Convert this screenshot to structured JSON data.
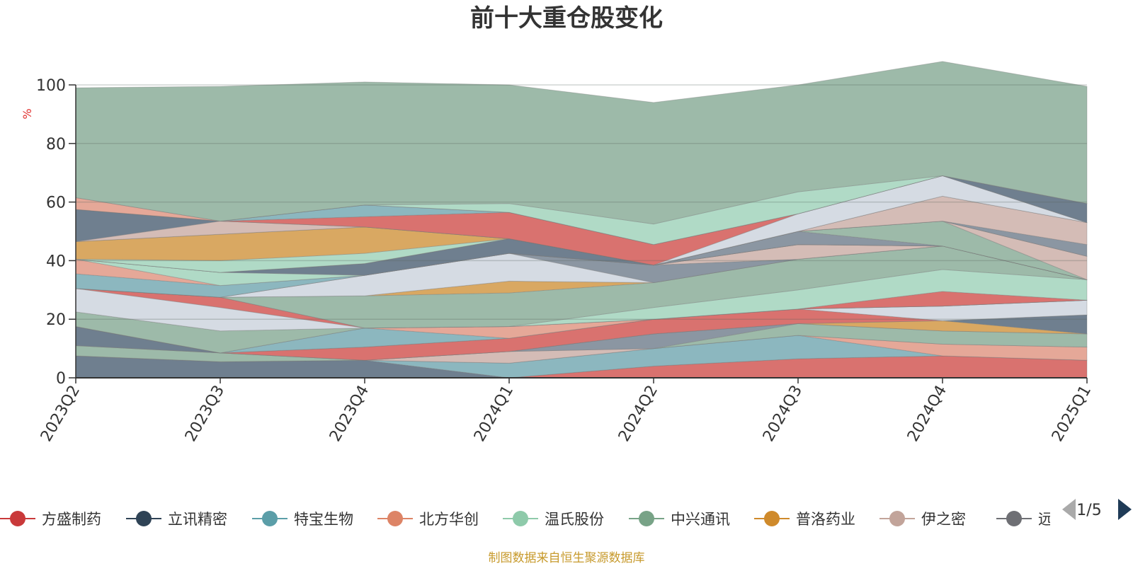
{
  "colors": {
    "background": "#ffffff",
    "axis": "#333333",
    "grid": "#c8c8c8",
    "unit": "#e0302e",
    "source": "#c79a2c",
    "pager_active": "#1f3b57",
    "pager_inactive": "#aaaaaa"
  },
  "chart_data": {
    "type": "area",
    "stacked": true,
    "title": "前十大重仓股变化",
    "ylabel": "%",
    "xlabel": "",
    "ylim": [
      0,
      100
    ],
    "yticks": [
      0,
      20,
      40,
      60,
      80,
      100
    ],
    "grid": true,
    "legend_position": "bottom",
    "categories": [
      "2023Q2",
      "2023Q3",
      "2023Q4",
      "2024Q1",
      "2024Q2",
      "2024Q3",
      "2024Q4",
      "2025Q1"
    ],
    "series": [
      {
        "name": "方盛制药",
        "color": "#d9726f",
        "values": [
          0,
          0,
          0,
          0,
          4,
          6.5,
          7.5,
          6
        ]
      },
      {
        "name": "",
        "color": "#6f7f8f",
        "values": [
          7.5,
          5.5,
          6,
          0,
          0,
          0,
          0,
          0
        ]
      },
      {
        "name": "特宝生物",
        "color": "#8cb7bf",
        "values": [
          0,
          0,
          0,
          5,
          6,
          8,
          0,
          0
        ]
      },
      {
        "name": "北方华创",
        "color": "#e5a898",
        "values": [
          0,
          0,
          0,
          0,
          0,
          0,
          4,
          4.5
        ]
      },
      {
        "name": "伊之密",
        "color": "#d4bcb6",
        "values": [
          0,
          0,
          0,
          4,
          0,
          0,
          0,
          0
        ]
      },
      {
        "name": "中兴通讯",
        "color": "#9dbaa9",
        "values": [
          3.5,
          3,
          0,
          0,
          0,
          4,
          4.5,
          4.5
        ]
      },
      {
        "name": "",
        "color": "#8b96a2",
        "values": [
          0,
          0,
          0,
          0,
          5,
          0,
          0,
          0
        ]
      },
      {
        "name": "普洛药业",
        "color": "#d9a862",
        "values": [
          0,
          0,
          0,
          0,
          0,
          0,
          3.5,
          0
        ]
      },
      {
        "name": "立讯精密",
        "color": "#6f7f8f",
        "values": [
          6.5,
          0,
          0,
          0,
          0,
          0,
          0,
          6.5
        ]
      },
      {
        "name": "方盛制药",
        "color": "#d9726f",
        "values": [
          0,
          0,
          4.5,
          4.5,
          5,
          5,
          0,
          0
        ]
      },
      {
        "name": "",
        "color": "#d5dbe3",
        "values": [
          0,
          0,
          0,
          0,
          0,
          0,
          5,
          5
        ]
      },
      {
        "name": "特宝生物",
        "color": "#8cb7bf",
        "values": [
          0,
          0,
          6.5,
          0,
          0,
          0,
          0,
          0
        ]
      },
      {
        "name": "北方华创",
        "color": "#e5a898",
        "values": [
          0,
          0,
          0,
          4,
          0,
          0,
          0,
          0
        ]
      },
      {
        "name": "中兴通讯",
        "color": "#9dbaa9",
        "values": [
          5,
          7.5,
          0,
          0,
          0,
          0,
          0,
          0
        ]
      },
      {
        "name": "",
        "color": "#d5dbe3",
        "values": [
          8,
          8,
          0,
          0,
          0,
          0,
          0,
          0
        ]
      },
      {
        "name": "方盛制药",
        "color": "#d9726f",
        "values": [
          0,
          3.5,
          0,
          0,
          0,
          0,
          5,
          0
        ]
      },
      {
        "name": "温氏股份",
        "color": "#b0dac6",
        "values": [
          0,
          0,
          0,
          0,
          4,
          6.5,
          7.5,
          7
        ]
      },
      {
        "name": "中兴通讯",
        "color": "#9dbaa9",
        "values": [
          0,
          0,
          11,
          11.5,
          8.5,
          10.5,
          8,
          0
        ]
      },
      {
        "name": "普洛药业",
        "color": "#d9a862",
        "values": [
          0,
          0,
          0,
          4,
          0,
          0,
          0,
          0
        ]
      },
      {
        "name": "",
        "color": "#d5dbe3",
        "values": [
          0,
          0,
          7,
          9.5,
          0,
          0,
          0,
          0
        ]
      },
      {
        "name": "",
        "color": "#8b96a2",
        "values": [
          0,
          0,
          0,
          0,
          6,
          0,
          0,
          0
        ]
      },
      {
        "name": "伊之密",
        "color": "#d4bcb6",
        "values": [
          0,
          0,
          0,
          0,
          0,
          5,
          0,
          0
        ]
      },
      {
        "name": "特宝生物",
        "color": "#8cb7bf",
        "values": [
          5,
          4,
          0,
          0,
          0,
          0,
          0,
          0
        ]
      },
      {
        "name": "北方华创",
        "color": "#e5a898",
        "values": [
          5,
          0,
          0,
          0,
          0,
          0,
          0,
          0
        ]
      },
      {
        "name": "温氏股份",
        "color": "#b0dac6",
        "values": [
          0,
          4.5,
          0,
          0,
          0,
          0,
          0,
          0
        ]
      },
      {
        "name": "立讯精密",
        "color": "#6f7f8f",
        "values": [
          0,
          0,
          4,
          5,
          0,
          0,
          0,
          0
        ]
      },
      {
        "name": "",
        "color": "#8b96a2",
        "values": [
          0,
          0,
          0,
          0,
          0,
          4.5,
          0,
          0
        ]
      },
      {
        "name": "中兴通讯",
        "color": "#9dbaa9",
        "values": [
          0,
          0,
          0,
          0,
          0,
          0,
          8.5,
          0
        ]
      },
      {
        "name": "伊之密",
        "color": "#d4bcb6",
        "values": [
          0,
          0,
          0,
          0,
          0,
          0,
          0,
          8
        ]
      },
      {
        "name": "温氏股份",
        "color": "#b0dac6",
        "values": [
          0,
          4,
          3.5,
          0,
          0,
          0,
          0,
          0
        ]
      },
      {
        "name": "普洛药业",
        "color": "#d9a862",
        "values": [
          6,
          9,
          9,
          0,
          0,
          0,
          0,
          0
        ]
      },
      {
        "name": "",
        "color": "#8b96a2",
        "values": [
          0,
          0,
          0,
          0,
          0,
          0,
          0,
          4
        ]
      },
      {
        "name": "伊之密",
        "color": "#d4bcb6",
        "values": [
          0,
          4.5,
          0,
          0,
          0,
          0,
          8.5,
          7.5
        ]
      },
      {
        "name": "立讯精密",
        "color": "#6f7f8f",
        "values": [
          11,
          0,
          0,
          0,
          0,
          0,
          0,
          0
        ]
      },
      {
        "name": "",
        "color": "#d5dbe3",
        "values": [
          0,
          0,
          0,
          0,
          0,
          6,
          7,
          0
        ]
      },
      {
        "name": "方盛制药",
        "color": "#d9726f",
        "values": [
          0,
          0,
          3.5,
          9,
          7,
          0,
          0,
          0
        ]
      },
      {
        "name": "特宝生物",
        "color": "#8cb7bf",
        "values": [
          0,
          0,
          4,
          0,
          0,
          0,
          0,
          0
        ]
      },
      {
        "name": "立讯精密",
        "color": "#6f7f8f",
        "values": [
          0,
          0,
          0,
          0,
          0,
          0,
          0,
          6.5
        ]
      },
      {
        "name": "北方华创",
        "color": "#e5a898",
        "values": [
          4,
          0,
          0,
          0,
          0,
          0,
          0,
          0
        ]
      },
      {
        "name": "温氏股份",
        "color": "#b0dac6",
        "values": [
          0,
          0,
          0,
          3,
          7,
          7.5,
          0,
          0
        ]
      },
      {
        "name": "",
        "color": "#9dbaa9",
        "values": [
          37.5,
          46,
          42,
          40.5,
          41.5,
          36.5,
          39,
          40
        ]
      }
    ],
    "legend": [
      "方盛制药",
      "立讯精密",
      "特宝生物",
      "北方华创",
      "温氏股份",
      "中兴通讯",
      "普洛药业",
      "伊之密",
      "远东股份"
    ],
    "legend_colors": [
      "#c9393a",
      "#2f4356",
      "#5b9ea8",
      "#dd8466",
      "#8ecaaa",
      "#78a387",
      "#cf8a2b",
      "#c2a49a",
      "#6e6f74"
    ],
    "legend_visible_text": [
      "方盛制药",
      "立讯精密",
      "特宝生物",
      "北方华创",
      "温氏股份",
      "中兴通讯",
      "普洛药业",
      "伊之密",
      "远:"
    ]
  },
  "legend_pager": {
    "text": "1/5",
    "prev_icon": "triangle-left-icon",
    "next_icon": "triangle-right-icon"
  },
  "source_note": "制图数据来自恒生聚源数据库"
}
